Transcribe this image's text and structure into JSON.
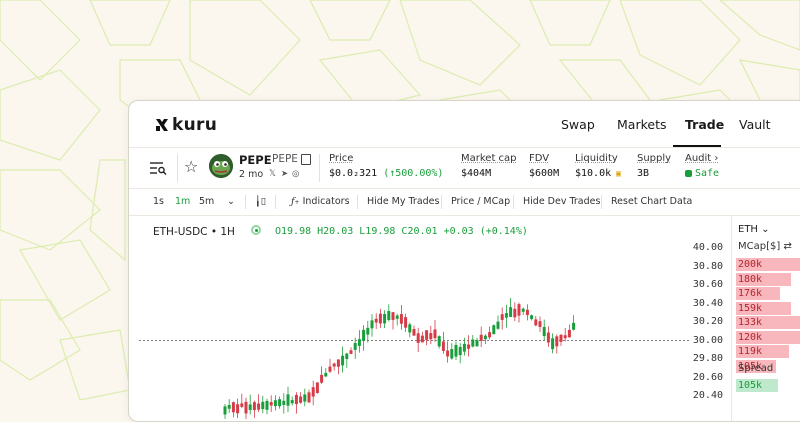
{
  "brand": {
    "logo_text": "kuru"
  },
  "nav": {
    "items": [
      {
        "label": "Swap",
        "active": false
      },
      {
        "label": "Markets",
        "active": false
      },
      {
        "label": "Trade",
        "active": true
      },
      {
        "label": "Vault",
        "active": false
      }
    ]
  },
  "token": {
    "name": "PEPE",
    "symbol": "PEPE",
    "age": "2 mo",
    "stats": {
      "price": {
        "label": "Price",
        "value": "$0.0₂321",
        "change": "(↑500.00%)"
      },
      "market_cap": {
        "label": "Market cap",
        "value": "$404M"
      },
      "fdv": {
        "label": "FDV",
        "value": "$600M"
      },
      "liquidity": {
        "label": "Liquidity",
        "value": "$10.0k"
      },
      "supply": {
        "label": "Supply",
        "value": "3B"
      },
      "audit": {
        "label": "Audit",
        "value": "Safe"
      }
    }
  },
  "toolbar": {
    "timeframes": [
      "1s",
      "1m",
      "5m"
    ],
    "active_timeframe": "1m",
    "indicators": "Indicators",
    "hide_my_trades": "Hide My Trades",
    "price_mcap": "Price / MCap",
    "hide_dev_trades": "Hide Dev Trades",
    "reset_chart": "Reset Chart Data"
  },
  "chart_header": {
    "pair": "ETH-USDC • 1H",
    "ohlc": "O19.98 H20.03 L19.98 C20.01 +0.03 (+0.14%)"
  },
  "chart_data": {
    "type": "candlestick",
    "y_ticks": [
      "40.00",
      "30.80",
      "30.60",
      "30.40",
      "30.20",
      "30.00",
      "29.80",
      "20.60",
      "20.40"
    ],
    "reference_line": 30.0,
    "colors": {
      "up": "#1a9e3b",
      "down": "#d63c48",
      "reference": "#555555"
    }
  },
  "orderbook": {
    "currency": "ETH",
    "column": "MCap[$]",
    "asks": [
      {
        "value": "200k",
        "depth": 1.0
      },
      {
        "value": "180k",
        "depth": 0.62
      },
      {
        "value": "176k",
        "depth": 0.5
      },
      {
        "value": "159k",
        "depth": 0.62
      },
      {
        "value": "133k",
        "depth": 0.75
      },
      {
        "value": "120k",
        "depth": 0.87
      },
      {
        "value": "119k",
        "depth": 0.6
      },
      {
        "value": "105k",
        "depth": 0.45
      }
    ],
    "spread_label": "Spread",
    "bids": [
      {
        "value": "105k"
      }
    ]
  },
  "colors": {
    "accent_green": "#1a9e3b",
    "ask_red": "#d63c48",
    "background": "#fbf6ee"
  }
}
